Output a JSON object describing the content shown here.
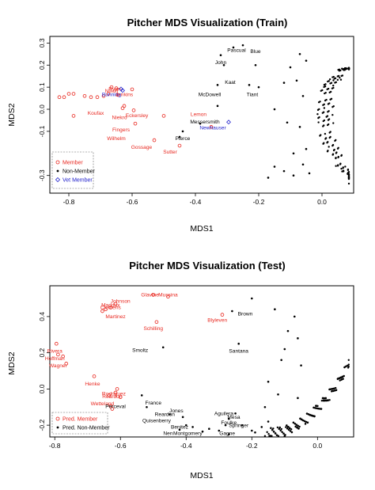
{
  "colors": {
    "member": "#e8271f",
    "non_member": "#000000",
    "vet_member": "#2222cc"
  },
  "chart_data": [
    {
      "type": "scatter",
      "title": "Pitcher MDS Visualization (Train)",
      "xlabel": "MDS1",
      "ylabel": "MDS2",
      "xlim": [
        -0.86,
        0.1
      ],
      "ylim": [
        -0.38,
        0.33
      ],
      "xticks": [
        -0.8,
        -0.6,
        -0.4,
        -0.2,
        0.0
      ],
      "xtick_labels": [
        "-0.8",
        "-0.6",
        "-0.4",
        "-0.2",
        "0.0"
      ],
      "yticks": [
        0.3,
        0.2,
        0.1,
        0.0,
        -0.1,
        -0.3
      ],
      "ytick_labels": [
        "0.3",
        "0.2",
        "0.1",
        "0.0",
        "-0.1",
        "-0.3"
      ],
      "legend": {
        "placement": "bottom-left",
        "entries": [
          "Member",
          "Non-Member",
          "Vet Member"
        ]
      },
      "series": [
        {
          "name": "Member",
          "marker": "circle-open",
          "color": "member",
          "points": [
            [
              -0.83,
              0.055
            ],
            [
              -0.815,
              0.055
            ],
            [
              -0.8,
              0.07
            ],
            [
              -0.785,
              0.07
            ],
            [
              -0.75,
              0.06
            ],
            [
              -0.73,
              0.055
            ],
            [
              -0.71,
              0.055
            ],
            [
              -0.69,
              0.06
            ],
            [
              -0.675,
              0.07
            ],
            [
              -0.665,
              0.1
            ],
            [
              -0.65,
              0.095
            ],
            [
              -0.645,
              0.065
            ],
            [
              -0.6,
              0.09
            ],
            [
              -0.63,
              0.005
            ],
            [
              -0.595,
              -0.005
            ],
            [
              -0.59,
              -0.065
            ],
            [
              -0.785,
              -0.03
            ],
            [
              -0.5,
              -0.03
            ],
            [
              -0.35,
              -0.08
            ],
            [
              -0.53,
              -0.14
            ],
            [
              -0.45,
              -0.165
            ],
            [
              -0.625,
              0.015
            ]
          ]
        },
        {
          "name": "Vet Member",
          "marker": "diamond-open",
          "color": "vet_member",
          "points": [
            [
              -0.635,
              0.092
            ],
            [
              -0.63,
              0.085
            ],
            [
              -0.295,
              -0.058
            ]
          ]
        },
        {
          "name": "Non-Member",
          "marker": "dot",
          "color": "non_member",
          "points": [
            [
              -0.28,
              0.28
            ],
            [
              -0.25,
              0.29
            ],
            [
              -0.32,
              0.245
            ],
            [
              -0.31,
              0.2
            ],
            [
              -0.33,
              0.11
            ],
            [
              -0.33,
              0.015
            ],
            [
              -0.385,
              -0.065
            ],
            [
              -0.44,
              -0.1
            ],
            [
              -0.45,
              -0.125
            ],
            [
              -0.21,
              0.2
            ],
            [
              -0.23,
              0.11
            ],
            [
              -0.2,
              0.1
            ],
            [
              -0.07,
              0.25
            ],
            [
              -0.05,
              0.22
            ],
            [
              -0.1,
              0.19
            ],
            [
              -0.12,
              0.12
            ],
            [
              -0.08,
              0.13
            ],
            [
              -0.06,
              0.06
            ],
            [
              -0.15,
              0.0
            ],
            [
              -0.11,
              -0.06
            ],
            [
              -0.07,
              -0.08
            ],
            [
              -0.15,
              -0.26
            ],
            [
              -0.12,
              -0.28
            ],
            [
              -0.09,
              -0.2
            ],
            [
              -0.06,
              -0.25
            ],
            [
              -0.17,
              -0.31
            ],
            [
              -0.09,
              -0.3
            ],
            [
              -0.05,
              -0.18
            ],
            [
              -0.04,
              -0.29
            ]
          ]
        }
      ],
      "annotations": [
        {
          "text": "Pascual",
          "x": -0.27,
          "y": 0.26,
          "color": "non_member"
        },
        {
          "text": "Blue",
          "x": -0.21,
          "y": 0.255,
          "color": "non_member"
        },
        {
          "text": "John",
          "x": -0.32,
          "y": 0.205,
          "color": "non_member"
        },
        {
          "text": "Kaat",
          "x": -0.29,
          "y": 0.115,
          "color": "non_member"
        },
        {
          "text": "McDowell",
          "x": -0.355,
          "y": 0.06,
          "color": "non_member"
        },
        {
          "text": "Tiant",
          "x": -0.22,
          "y": 0.06,
          "color": "non_member"
        },
        {
          "text": "Messersmith",
          "x": -0.37,
          "y": -0.065,
          "color": "non_member"
        },
        {
          "text": "Pierce",
          "x": -0.44,
          "y": -0.14,
          "color": "non_member"
        },
        {
          "text": "Newhauser",
          "x": -0.345,
          "y": -0.092,
          "color": "vet_member"
        },
        {
          "text": "Lemon",
          "x": -0.39,
          "y": -0.03,
          "color": "member"
        },
        {
          "text": "Sutter",
          "x": -0.48,
          "y": -0.2,
          "color": "member"
        },
        {
          "text": "Gossage",
          "x": -0.57,
          "y": -0.18,
          "color": "member"
        },
        {
          "text": "Wilhelm",
          "x": -0.65,
          "y": -0.14,
          "color": "member"
        },
        {
          "text": "Fingers",
          "x": -0.635,
          "y": -0.1,
          "color": "member"
        },
        {
          "text": "Eckersley",
          "x": -0.585,
          "y": -0.035,
          "color": "member"
        },
        {
          "text": "Niekro",
          "x": -0.64,
          "y": -0.045,
          "color": "member"
        },
        {
          "text": "Koufax",
          "x": -0.715,
          "y": -0.025,
          "color": "member"
        },
        {
          "text": "Jenkins",
          "x": -0.625,
          "y": 0.06,
          "color": "member"
        },
        {
          "text": "Bunning",
          "x": -0.665,
          "y": 0.06,
          "color": "vet_member"
        },
        {
          "text": "Ryan",
          "x": -0.655,
          "y": 0.085,
          "color": "member"
        },
        {
          "text": "Nixon",
          "x": -0.665,
          "y": 0.075,
          "color": "member"
        }
      ]
    },
    {
      "type": "scatter",
      "title": "Pitcher MDS Visualization (Test)",
      "xlabel": "MDS1",
      "ylabel": "MDS2",
      "xlim": [
        -0.815,
        0.11
      ],
      "ylim": [
        -0.265,
        0.57
      ],
      "xticks": [
        -0.8,
        -0.6,
        -0.4,
        -0.2,
        0.0
      ],
      "xtick_labels": [
        "-0.8",
        "-0.6",
        "-0.4",
        "-0.2",
        "0.0"
      ],
      "yticks": [
        0.4,
        0.2,
        0.0,
        -0.2
      ],
      "ytick_labels": [
        "0.4",
        "0.2",
        "0.0",
        "-0.2"
      ],
      "legend": {
        "placement": "bottom-left",
        "entries": [
          "Pred. Member",
          "Pred. Non-Member"
        ]
      },
      "series": [
        {
          "name": "Pred. Member",
          "marker": "circle-open",
          "color": "member",
          "points": [
            [
              -0.5,
              0.52
            ],
            [
              -0.455,
              0.51
            ],
            [
              -0.615,
              0.47
            ],
            [
              -0.63,
              0.45
            ],
            [
              -0.645,
              0.44
            ],
            [
              -0.655,
              0.43
            ],
            [
              -0.49,
              0.37
            ],
            [
              -0.29,
              0.41
            ],
            [
              -0.795,
              0.25
            ],
            [
              -0.79,
              0.19
            ],
            [
              -0.775,
              0.18
            ],
            [
              -0.765,
              0.14
            ],
            [
              -0.68,
              0.07
            ],
            [
              -0.61,
              0.0
            ],
            [
              -0.615,
              -0.02
            ],
            [
              -0.635,
              -0.035
            ],
            [
              -0.6,
              -0.045
            ],
            [
              -0.63,
              -0.095
            ],
            [
              -0.625,
              -0.11
            ]
          ]
        },
        {
          "name": "Pred. Non-Member",
          "marker": "dot",
          "color": "non_member",
          "points": [
            [
              -0.2,
              0.5
            ],
            [
              -0.13,
              0.44
            ],
            [
              -0.07,
              0.4
            ],
            [
              -0.09,
              0.32
            ],
            [
              -0.06,
              0.28
            ],
            [
              -0.26,
              0.43
            ],
            [
              -0.24,
              0.25
            ],
            [
              -0.47,
              0.23
            ],
            [
              -0.1,
              0.22
            ],
            [
              -0.11,
              0.16
            ],
            [
              -0.05,
              0.13
            ],
            [
              -0.15,
              0.04
            ],
            [
              -0.12,
              -0.03
            ],
            [
              -0.06,
              -0.05
            ],
            [
              -0.535,
              -0.035
            ],
            [
              -0.52,
              -0.1
            ],
            [
              -0.45,
              -0.14
            ],
            [
              -0.41,
              -0.155
            ],
            [
              -0.4,
              -0.2
            ],
            [
              -0.42,
              -0.225
            ],
            [
              -0.35,
              -0.235
            ],
            [
              -0.38,
              -0.21
            ],
            [
              -0.28,
              -0.2
            ],
            [
              -0.27,
              -0.165
            ],
            [
              -0.25,
              -0.135
            ],
            [
              -0.23,
              -0.2
            ],
            [
              -0.2,
              -0.23
            ],
            [
              -0.17,
              -0.21
            ],
            [
              -0.15,
              -0.18
            ],
            [
              -0.3,
              -0.23
            ],
            [
              -0.33,
              -0.22
            ],
            [
              -0.16,
              -0.1
            ],
            [
              -0.19,
              -0.24
            ],
            [
              -0.1,
              -0.26
            ],
            [
              -0.27,
              -0.25
            ]
          ]
        }
      ],
      "annotations": [
        {
          "text": "Glavine",
          "x": -0.51,
          "y": 0.51,
          "color": "member"
        },
        {
          "text": "Mussina",
          "x": -0.455,
          "y": 0.51,
          "color": "member"
        },
        {
          "text": "Johnson",
          "x": -0.6,
          "y": 0.475,
          "color": "member"
        },
        {
          "text": "Maddux",
          "x": -0.63,
          "y": 0.455,
          "color": "member"
        },
        {
          "text": "Clemens",
          "x": -0.63,
          "y": 0.44,
          "color": "member"
        },
        {
          "text": "Martinez",
          "x": -0.615,
          "y": 0.39,
          "color": "member"
        },
        {
          "text": "Schilling",
          "x": -0.5,
          "y": 0.325,
          "color": "member"
        },
        {
          "text": "Blyleven",
          "x": -0.305,
          "y": 0.37,
          "color": "member"
        },
        {
          "text": "Brown",
          "x": -0.22,
          "y": 0.405,
          "color": "non_member"
        },
        {
          "text": "Smoltz",
          "x": -0.54,
          "y": 0.205,
          "color": "non_member"
        },
        {
          "text": "Santana",
          "x": -0.24,
          "y": 0.2,
          "color": "non_member"
        },
        {
          "text": "Rivera",
          "x": -0.8,
          "y": 0.2,
          "color": "member"
        },
        {
          "text": "Hoffman",
          "x": -0.8,
          "y": 0.16,
          "color": "member"
        },
        {
          "text": "Wagner",
          "x": -0.79,
          "y": 0.12,
          "color": "member"
        },
        {
          "text": "Henke",
          "x": -0.685,
          "y": 0.02,
          "color": "member"
        },
        {
          "text": "Rodriguez",
          "x": -0.62,
          "y": -0.035,
          "color": "member"
        },
        {
          "text": "Reardon",
          "x": -0.625,
          "y": -0.05,
          "color": "member"
        },
        {
          "text": "Wetteland",
          "x": -0.655,
          "y": -0.09,
          "color": "member"
        },
        {
          "text": "Perceval",
          "x": -0.615,
          "y": -0.105,
          "color": "non_member"
        },
        {
          "text": "France",
          "x": -0.5,
          "y": -0.085,
          "color": "non_member"
        },
        {
          "text": "Jones",
          "x": -0.43,
          "y": -0.13,
          "color": "non_member"
        },
        {
          "text": "Quisenberry",
          "x": -0.49,
          "y": -0.185,
          "color": "non_member"
        },
        {
          "text": "Reardon",
          "x": -0.465,
          "y": -0.15,
          "color": "non_member"
        },
        {
          "text": "Nen",
          "x": -0.455,
          "y": -0.255,
          "color": "non_member"
        },
        {
          "text": "Montgomery",
          "x": -0.395,
          "y": -0.255,
          "color": "non_member"
        },
        {
          "text": "Benitez",
          "x": -0.42,
          "y": -0.22,
          "color": "non_member"
        },
        {
          "text": "Aguilera",
          "x": -0.285,
          "y": -0.145,
          "color": "non_member"
        },
        {
          "text": "Mesa",
          "x": -0.255,
          "y": -0.165,
          "color": "non_member"
        },
        {
          "text": "Foulke",
          "x": -0.27,
          "y": -0.195,
          "color": "non_member"
        },
        {
          "text": "Springer",
          "x": -0.24,
          "y": -0.21,
          "color": "non_member"
        },
        {
          "text": "Gagne",
          "x": -0.275,
          "y": -0.255,
          "color": "non_member"
        }
      ]
    }
  ]
}
